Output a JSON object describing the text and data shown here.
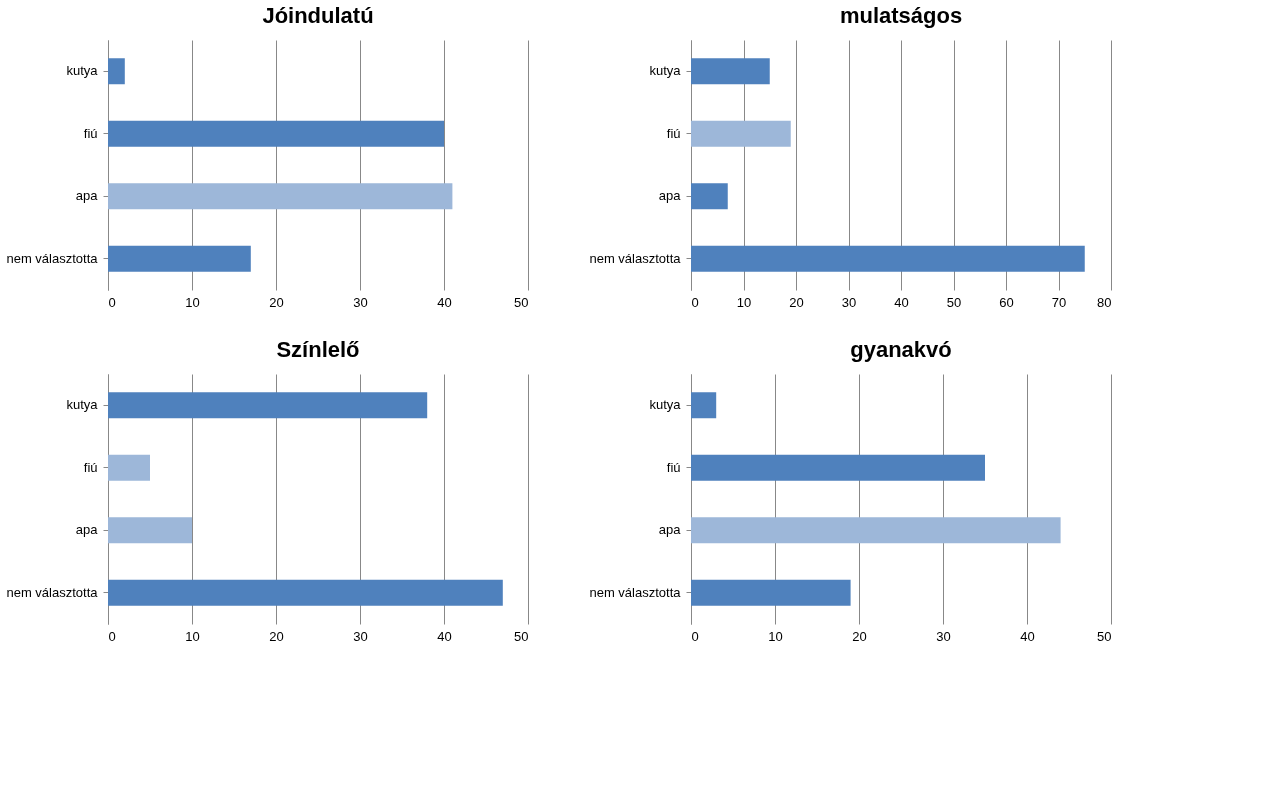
{
  "chart_data": [
    {
      "type": "bar",
      "orientation": "horizontal",
      "title": "Jóindulatú",
      "categories": [
        "kutya",
        "fiú",
        "apa",
        "nem választotta"
      ],
      "values": [
        2,
        40,
        41,
        17
      ],
      "colors": [
        "#4f81bd",
        "#4f81bd",
        "#9db7d9",
        "#4f81bd"
      ],
      "xlim": [
        0,
        50
      ],
      "xticks": [
        0,
        10,
        20,
        30,
        40,
        50
      ],
      "grid": "x"
    },
    {
      "type": "bar",
      "orientation": "horizontal",
      "title": "mulatságos",
      "categories": [
        "kutya",
        "fiú",
        "apa",
        "nem választotta"
      ],
      "values": [
        15,
        19,
        7,
        75
      ],
      "colors": [
        "#4f81bd",
        "#9db7d9",
        "#4f81bd",
        "#4f81bd"
      ],
      "xlim": [
        0,
        80
      ],
      "xticks": [
        0,
        10,
        20,
        30,
        40,
        50,
        60,
        70,
        80
      ],
      "grid": "x"
    },
    {
      "type": "bar",
      "orientation": "horizontal",
      "title": "Színlelő",
      "categories": [
        "kutya",
        "fiú",
        "apa",
        "nem választotta"
      ],
      "values": [
        38,
        5,
        10,
        47
      ],
      "colors": [
        "#4f81bd",
        "#9db7d9",
        "#9db7d9",
        "#4f81bd"
      ],
      "xlim": [
        0,
        50
      ],
      "xticks": [
        0,
        10,
        20,
        30,
        40,
        50
      ],
      "grid": "x"
    },
    {
      "type": "bar",
      "orientation": "horizontal",
      "title": "gyanakvó",
      "categories": [
        "kutya",
        "fiú",
        "apa",
        "nem választotta"
      ],
      "values": [
        3,
        35,
        44,
        19
      ],
      "colors": [
        "#4f81bd",
        "#4f81bd",
        "#9db7d9",
        "#4f81bd"
      ],
      "xlim": [
        0,
        50
      ],
      "xticks": [
        0,
        10,
        20,
        30,
        40,
        50
      ],
      "grid": "x"
    }
  ]
}
